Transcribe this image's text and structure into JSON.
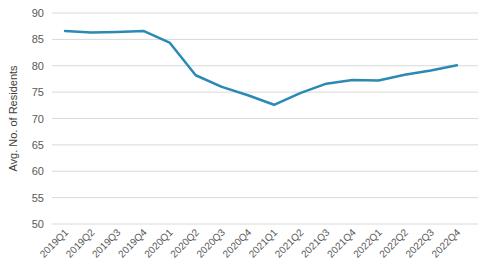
{
  "chart_data": {
    "type": "line",
    "y_label": "Avg. No. of Residents",
    "categories": [
      "2019Q1",
      "2019Q2",
      "2019Q3",
      "2019Q4",
      "2020Q1",
      "2020Q2",
      "2020Q3",
      "2020Q4",
      "2021Q1",
      "2021Q2",
      "2021Q3",
      "2021Q4",
      "2022Q1",
      "2022Q2",
      "2022Q3",
      "2022Q4"
    ],
    "values": [
      86.6,
      86.3,
      86.4,
      86.6,
      84.4,
      78.2,
      76.0,
      74.4,
      72.6,
      74.8,
      76.6,
      77.3,
      77.2,
      78.3,
      79.1,
      80.1
    ],
    "color": "#2a8ab5",
    "ylim": [
      50,
      90
    ],
    "yticks": [
      50,
      55,
      60,
      65,
      70,
      75,
      80,
      85,
      90
    ],
    "grid": true
  }
}
